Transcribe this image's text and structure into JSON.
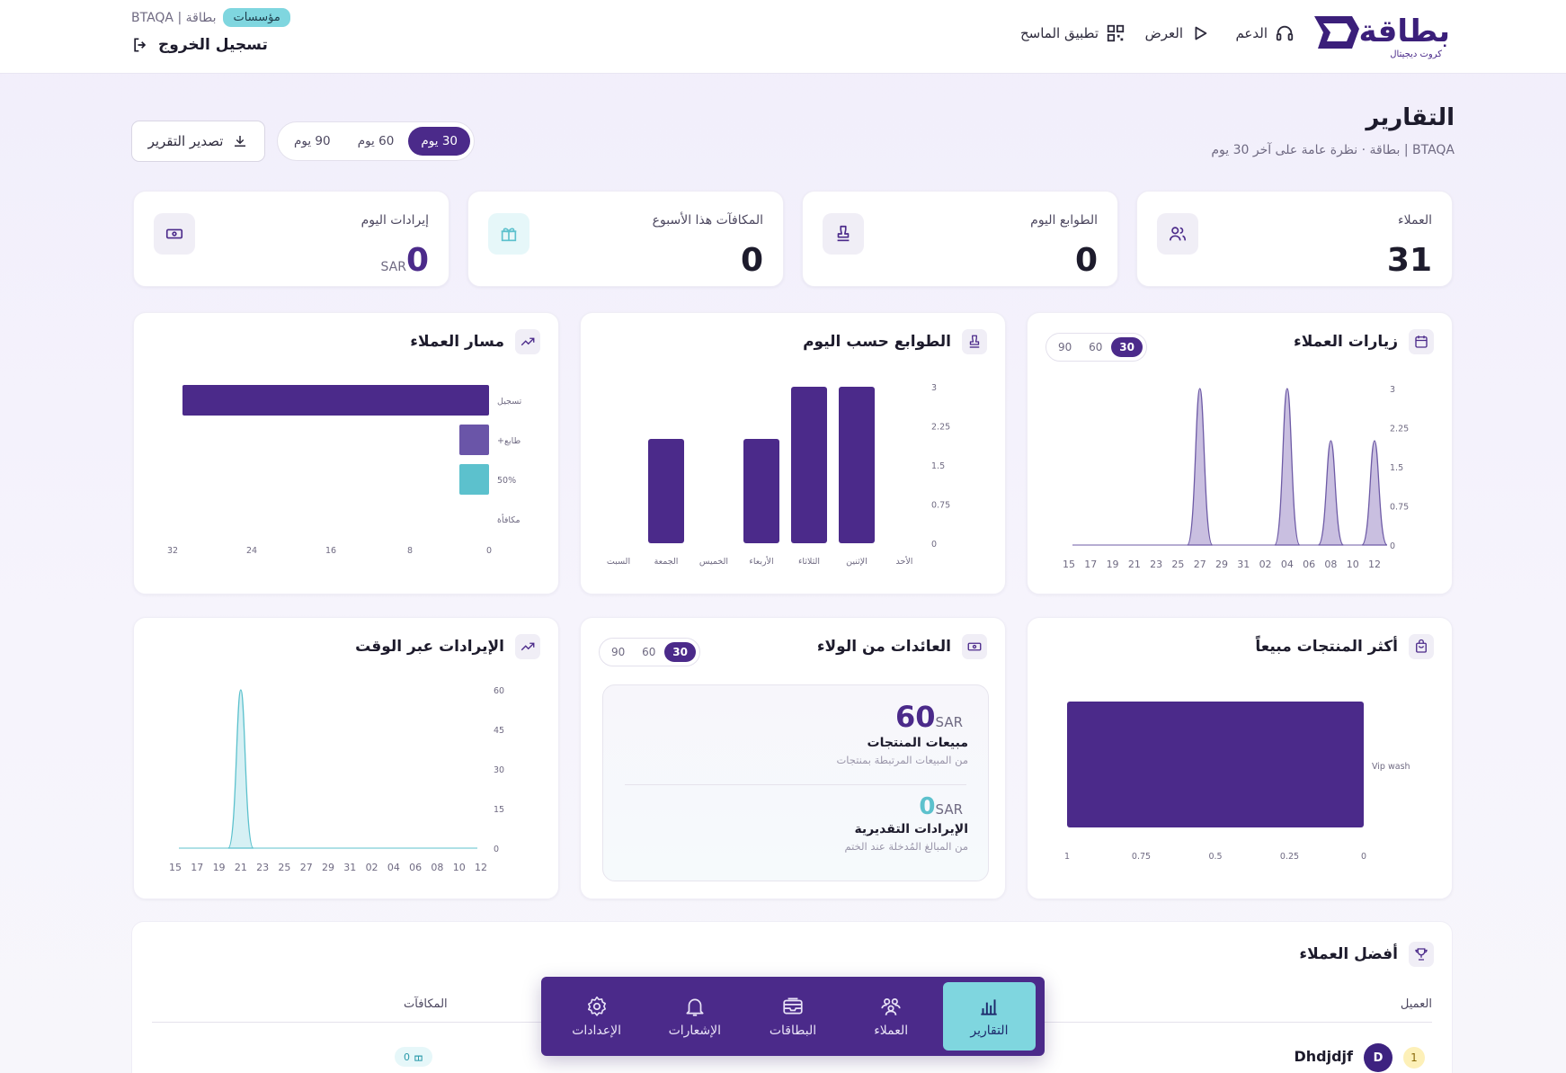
{
  "header": {
    "logo_text": "بطاقة",
    "logo_sub": "كروت ديجيتال",
    "nav": [
      {
        "label": "الدعم",
        "icon": "headset-icon"
      },
      {
        "label": "العرض",
        "icon": "play-icon"
      },
      {
        "label": "تطبيق الماسح",
        "icon": "qr-icon"
      }
    ],
    "org_name": "BTAQA | بطاقة",
    "org_badge": "مؤسسات",
    "logout_label": "تسجيل الخروج"
  },
  "page": {
    "title": "التقارير",
    "subtitle": "BTAQA | بطاقة · نظرة عامة على آخر 30 يوم",
    "periods": [
      "30 يوم",
      "60 يوم",
      "90 يوم"
    ],
    "active_period": "30 يوم",
    "export_label": "تصدير التقرير"
  },
  "stats": [
    {
      "label": "العملاء",
      "value": "31",
      "icon": "users-icon"
    },
    {
      "label": "الطوابع اليوم",
      "value": "0",
      "icon": "stamp-icon"
    },
    {
      "label": "المكافآت هذا الأسبوع",
      "value": "0",
      "icon": "gift-icon"
    },
    {
      "label": "إيرادات اليوم",
      "value": "0",
      "currency": "SAR",
      "icon": "cash-icon"
    }
  ],
  "panels": {
    "visits": {
      "title": "زيارات العملاء",
      "icon": "calendar-icon",
      "periods": [
        "30",
        "60",
        "90"
      ],
      "active": "30"
    },
    "stamps": {
      "title": "الطوابع حسب اليوم",
      "icon": "stamp-icon"
    },
    "funnel": {
      "title": "مسار العملاء",
      "icon": "trend-icon"
    },
    "products": {
      "title": "أكثر المنتجات مبيعاً",
      "icon": "bag-icon"
    },
    "loyalty": {
      "title": "العائدات من الولاء",
      "icon": "cash-icon",
      "periods": [
        "30",
        "60",
        "90"
      ],
      "active": "30",
      "sales_value": "60",
      "sales_currency": "SAR",
      "sales_title": "مبيعات المنتجات",
      "sales_sub": "من المبيعات المرتبطة بمنتجات",
      "est_value": "0",
      "est_currency": "SAR",
      "est_title": "الإيرادات التقديرية",
      "est_sub": "من المبالغ المُدخلة عند الختم"
    },
    "revenue": {
      "title": "الإيرادات عبر الوقت",
      "icon": "trend-icon"
    }
  },
  "top_customers": {
    "title": "أفضل العملاء",
    "icon": "trophy-icon",
    "columns": {
      "customer": "العميل",
      "rewards": "المكافآت"
    },
    "rows": [
      {
        "rank": "1",
        "initial": "D",
        "name": "Dhdjdjf",
        "rewards": "0"
      }
    ]
  },
  "bottom_nav": [
    {
      "label": "التقارير",
      "icon": "chart-icon",
      "active": true
    },
    {
      "label": "العملاء",
      "icon": "people-icon",
      "active": false
    },
    {
      "label": "البطاقات",
      "icon": "wallet-icon",
      "active": false
    },
    {
      "label": "الإشعارات",
      "icon": "bell-icon",
      "active": false
    },
    {
      "label": "الإعدادات",
      "icon": "settings-icon",
      "active": false
    }
  ],
  "colors": {
    "primary": "#4b2a8a",
    "accent": "#5cc1cd",
    "area_fill": "#c9bfe0",
    "revenue_fill": "#d6f0f4"
  },
  "chart_data": [
    {
      "type": "area",
      "title": "زيارات العملاء",
      "x": [
        "15",
        "17",
        "19",
        "21",
        "23",
        "25",
        "27",
        "29",
        "31",
        "02",
        "04",
        "06",
        "08",
        "10",
        "12"
      ],
      "series": [
        {
          "values": [
            0,
            0,
            0,
            0,
            0,
            0,
            3,
            0,
            0,
            0,
            3,
            0,
            2,
            0,
            2
          ]
        }
      ],
      "yticks": [
        "0",
        "0.75",
        "1.5",
        "2.25",
        "3"
      ],
      "ylim": [
        0,
        3
      ]
    },
    {
      "type": "bar",
      "title": "الطوابع حسب اليوم",
      "categories": [
        "الأحد",
        "الإثنين",
        "الثلاثاء",
        "الأربعاء",
        "الخميس",
        "الجمعة",
        "السبت"
      ],
      "values": [
        0,
        3,
        3,
        2,
        0,
        2,
        0
      ],
      "yticks": [
        "0",
        "0.75",
        "1.5",
        "2.25",
        "3"
      ],
      "ylim": [
        0,
        3
      ]
    },
    {
      "type": "bar",
      "orientation": "horizontal",
      "title": "مسار العملاء",
      "categories": [
        "تسجيل",
        "+طابع",
        "50%",
        "مكافأة"
      ],
      "values": [
        31,
        3,
        3,
        0
      ],
      "xticks": [
        "0",
        "8",
        "16",
        "24",
        "32"
      ],
      "xlim": [
        0,
        32
      ]
    },
    {
      "type": "bar",
      "orientation": "horizontal",
      "title": "أكثر المنتجات مبيعاً",
      "categories": [
        "Vip wash"
      ],
      "values": [
        1
      ],
      "xticks": [
        "0",
        "0.25",
        "0.5",
        "0.75",
        "1"
      ],
      "xlim": [
        0,
        1
      ]
    },
    {
      "type": "area",
      "title": "الإيرادات عبر الوقت",
      "x": [
        "15",
        "17",
        "19",
        "21",
        "23",
        "25",
        "27",
        "29",
        "31",
        "02",
        "04",
        "06",
        "08",
        "10",
        "12"
      ],
      "series": [
        {
          "values": [
            0,
            0,
            0,
            60,
            0,
            0,
            0,
            0,
            0,
            0,
            0,
            0,
            0,
            0,
            0
          ]
        }
      ],
      "yticks": [
        "0",
        "15",
        "30",
        "45",
        "60"
      ],
      "ylim": [
        0,
        60
      ]
    }
  ]
}
